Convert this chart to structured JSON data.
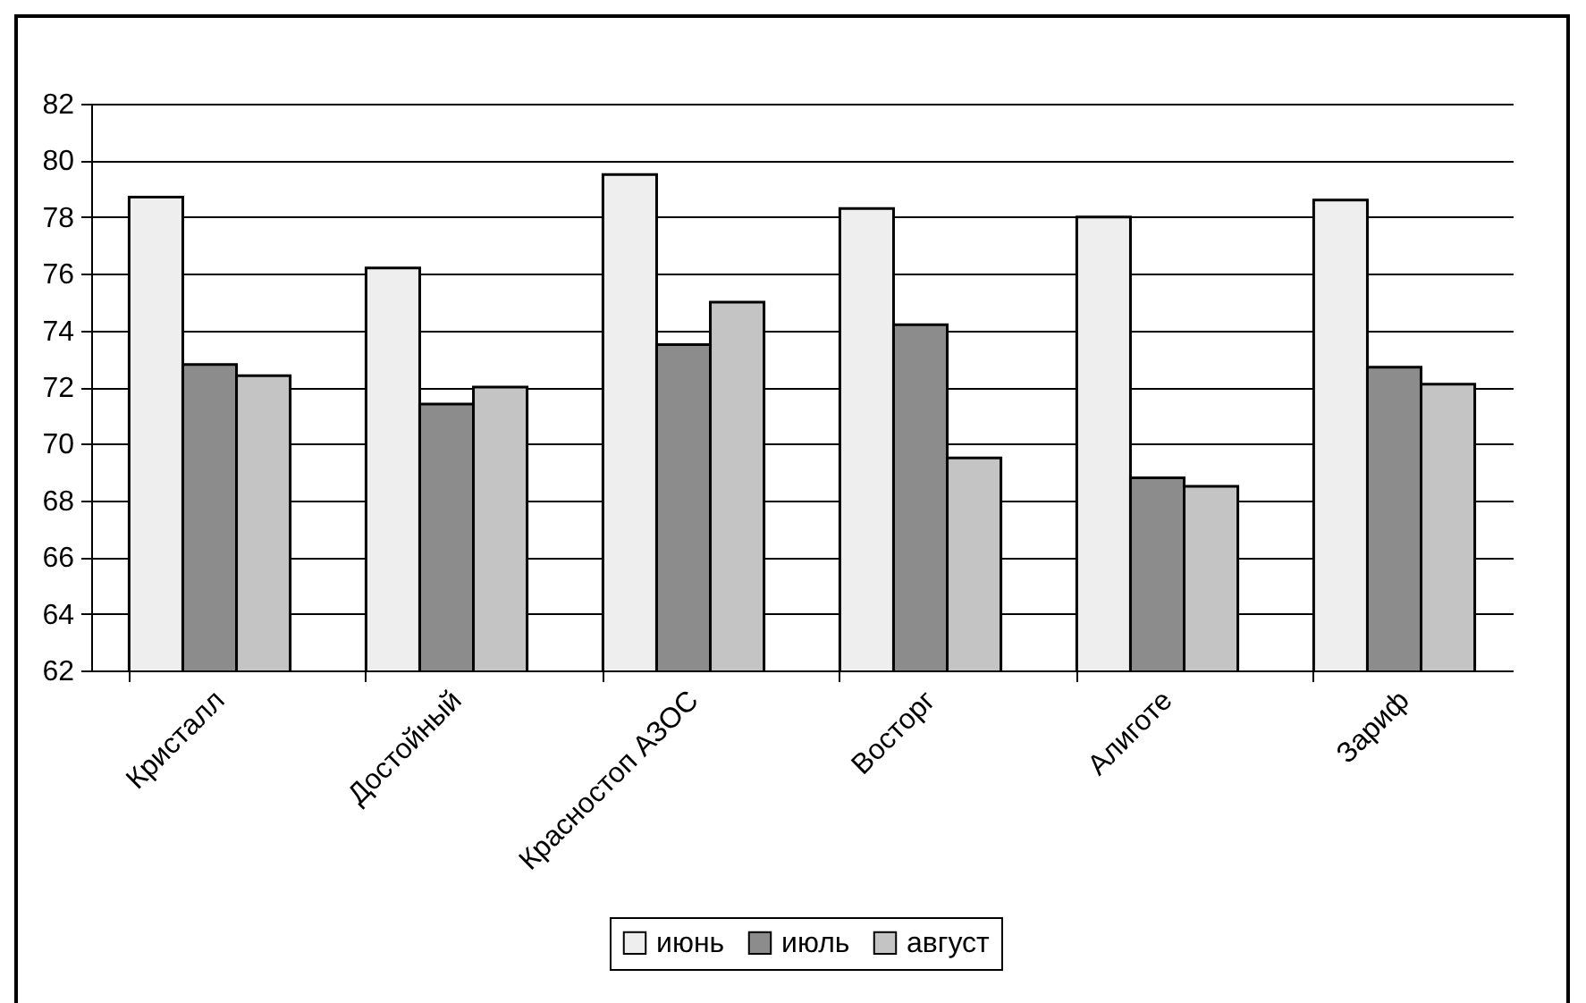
{
  "chart_data": {
    "type": "bar",
    "categories": [
      "Кристалл",
      "Достойный",
      "Красностоп АЗОС",
      "Восторг",
      "Алиготе",
      "Зариф"
    ],
    "series": [
      {
        "name": "июнь",
        "color": "#eeeeee",
        "values": [
          78.7,
          76.2,
          79.5,
          78.3,
          78.0,
          78.6
        ]
      },
      {
        "name": "июль",
        "color": "#8c8c8c",
        "values": [
          72.8,
          71.4,
          73.5,
          74.2,
          68.8,
          72.7
        ]
      },
      {
        "name": "август",
        "color": "#c4c4c4",
        "values": [
          72.4,
          72.0,
          75.0,
          69.5,
          68.5,
          72.1
        ]
      }
    ],
    "ylim": [
      62,
      82
    ],
    "yticks": [
      62,
      64,
      66,
      68,
      70,
      72,
      74,
      76,
      78,
      80,
      82
    ],
    "grid": "y",
    "legend": "bottom"
  }
}
